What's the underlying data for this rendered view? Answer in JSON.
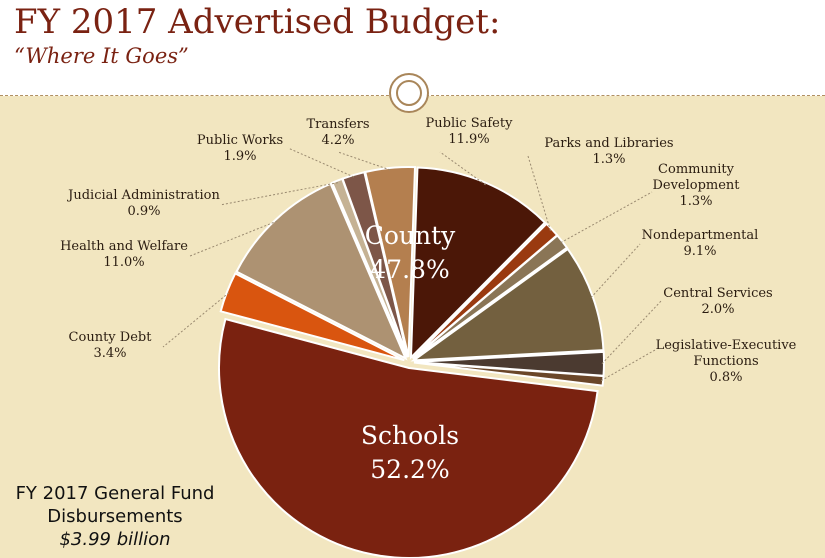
{
  "header": {
    "title": "FY 2017 Advertised Budget:",
    "subtitle": "“Where It Goes”"
  },
  "footer": {
    "line1": "FY 2017 General Fund",
    "line2": "Disbursements",
    "amount": "$3.99 billion"
  },
  "chart_data": {
    "type": "pie",
    "groups": [
      {
        "name": "Schools",
        "value": 52.2,
        "label": "52.2%"
      },
      {
        "name": "County",
        "value": 47.8,
        "label": "47.8%"
      }
    ],
    "slices": [
      {
        "name": "Schools",
        "value": 52.2,
        "pct": "52.2%",
        "color": "#7a2210"
      },
      {
        "name": "County Debt",
        "value": 3.4,
        "pct": "3.4%",
        "color": "#d9550f"
      },
      {
        "name": "Health and Welfare",
        "value": 11.0,
        "pct": "11.0%",
        "color": "#ad9272"
      },
      {
        "name": "Judicial Administration",
        "value": 0.9,
        "pct": "0.9%",
        "color": "#c5b294"
      },
      {
        "name": "Public Works",
        "value": 1.9,
        "pct": "1.9%",
        "color": "#7d5648"
      },
      {
        "name": "Transfers",
        "value": 4.2,
        "pct": "4.2%",
        "color": "#b47f4f"
      },
      {
        "name": "Public Safety",
        "value": 11.9,
        "pct": "11.9%",
        "color": "#4b1707"
      },
      {
        "name": "Parks and Libraries",
        "value": 1.3,
        "pct": "1.3%",
        "color": "#9a3a10"
      },
      {
        "name": "Community Development",
        "value": 1.3,
        "pct": "1.3%",
        "color": "#8a7556"
      },
      {
        "name": "Nondepartmental",
        "value": 9.1,
        "pct": "9.1%",
        "color": "#73603f"
      },
      {
        "name": "Central Services",
        "value": 2.0,
        "pct": "2.0%",
        "color": "#4b3a30"
      },
      {
        "name": "Legislative-Executive Functions",
        "value": 0.8,
        "pct": "0.8%",
        "color": "#6a4628"
      }
    ],
    "labels": [
      {
        "slice": "County Debt",
        "lines": [
          "County Debt",
          "3.4%"
        ]
      },
      {
        "slice": "Health and Welfare",
        "lines": [
          "Health and Welfare",
          "11.0%"
        ]
      },
      {
        "slice": "Judicial Administration",
        "lines": [
          "Judicial Administration",
          "0.9%"
        ]
      },
      {
        "slice": "Public Works",
        "lines": [
          "Public Works",
          "1.9%"
        ]
      },
      {
        "slice": "Transfers",
        "lines": [
          "Transfers",
          "4.2%"
        ]
      },
      {
        "slice": "Public Safety",
        "lines": [
          "Public Safety",
          "11.9%"
        ]
      },
      {
        "slice": "Parks and Libraries",
        "lines": [
          "Parks and Libraries",
          "1.3%"
        ]
      },
      {
        "slice": "Community Development",
        "lines": [
          "Community",
          "Development",
          "1.3%"
        ]
      },
      {
        "slice": "Nondepartmental",
        "lines": [
          "Nondepartmental",
          "9.1%"
        ]
      },
      {
        "slice": "Central Services",
        "lines": [
          "Central Services",
          "2.0%"
        ]
      },
      {
        "slice": "Legislative-Executive Functions",
        "lines": [
          "Legislative-Executive",
          "Functions",
          "0.8%"
        ]
      }
    ]
  }
}
